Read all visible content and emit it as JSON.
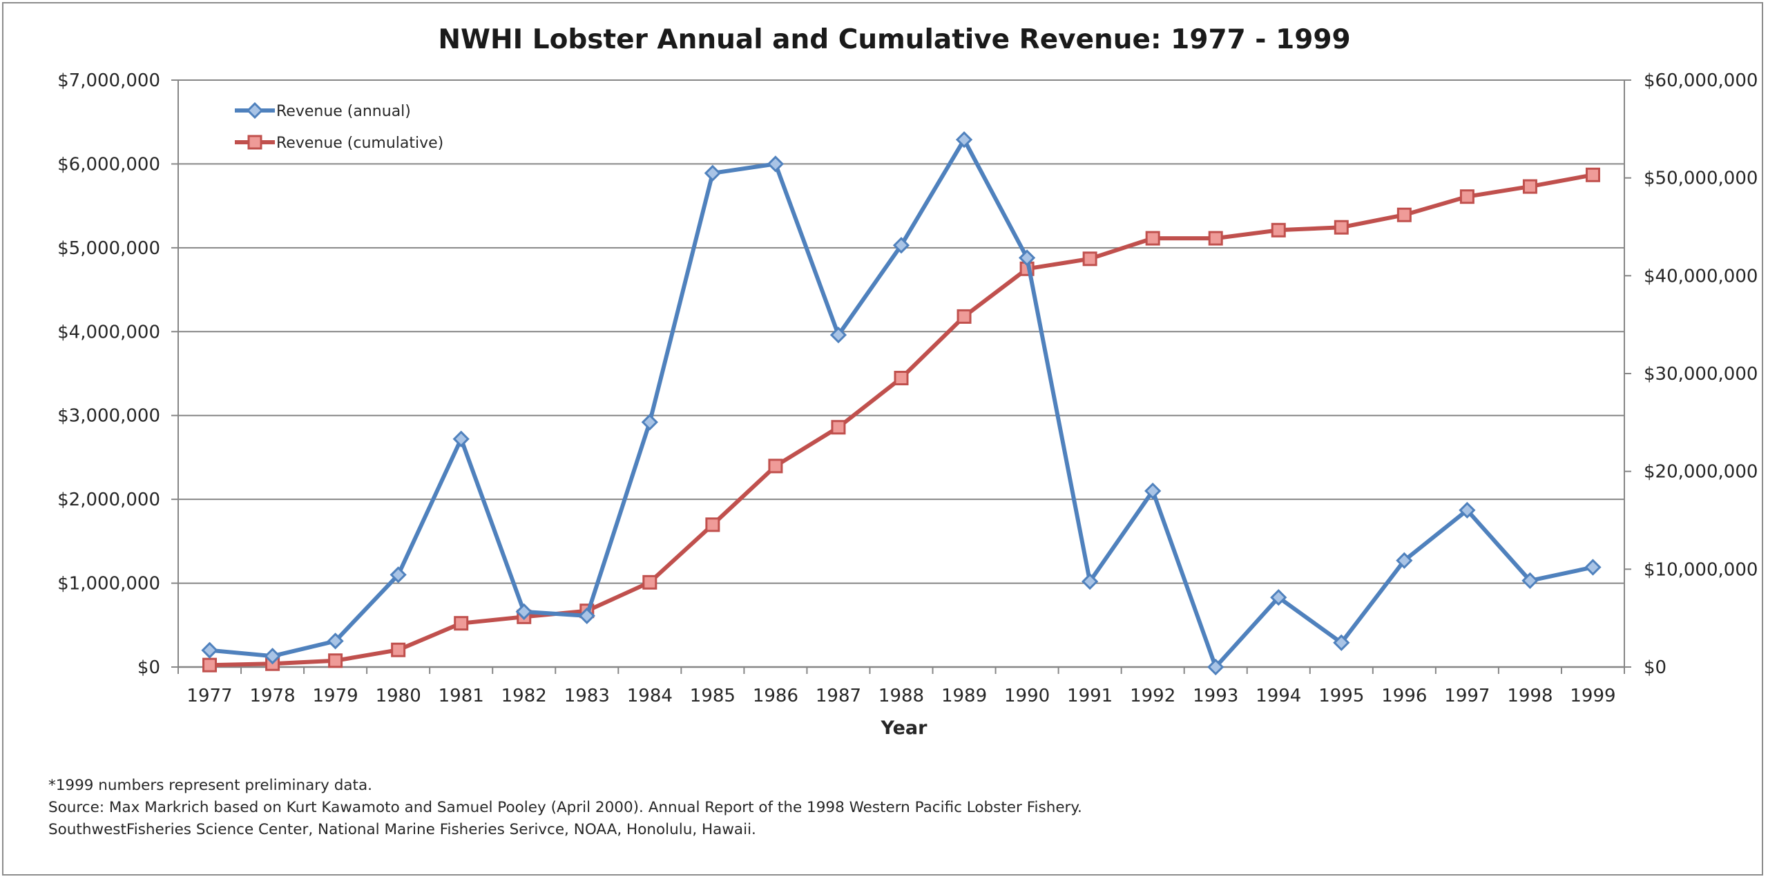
{
  "colors": {
    "annual": "#4f81bd",
    "cumulative": "#c0504d",
    "grid": "#868686",
    "axis": "#868686"
  },
  "chart_data": {
    "type": "line",
    "title": "NWHI Lobster Annual and Cumulative Revenue: 1977 - 1999",
    "xlabel": "Year",
    "ylabel": "",
    "ylabel_right": "",
    "categories": [
      "1977",
      "1978",
      "1979",
      "1980",
      "1981",
      "1982",
      "1983",
      "1984",
      "1985",
      "1986",
      "1987",
      "1988",
      "1989",
      "1990",
      "1991",
      "1992",
      "1993",
      "1994",
      "1995",
      "1996",
      "1997",
      "1998",
      "1999"
    ],
    "ylim": [
      0,
      7000000
    ],
    "ylim_right": [
      0,
      60000000
    ],
    "yticks_left": [
      "$0",
      "$1,000,000",
      "$2,000,000",
      "$3,000,000",
      "$4,000,000",
      "$5,000,000",
      "$6,000,000",
      "$7,000,000"
    ],
    "yticks_right": [
      "$0",
      "$10,000,000",
      "$20,000,000",
      "$30,000,000",
      "$40,000,000",
      "$50,000,000",
      "$60,000,000"
    ],
    "grid": true,
    "legend_position": "top-left",
    "series": [
      {
        "name": "Revenue (annual)",
        "axis": "left",
        "marker": "diamond",
        "values": [
          200000,
          130000,
          310000,
          1100000,
          2720000,
          660000,
          610000,
          2920000,
          5890000,
          6000000,
          3960000,
          5030000,
          6290000,
          4880000,
          1020000,
          2100000,
          0,
          830000,
          290000,
          1270000,
          1870000,
          1030000,
          1190000
        ]
      },
      {
        "name": "Revenue (cumulative)",
        "axis": "right",
        "marker": "square",
        "values": [
          200000,
          340000,
          650000,
          1750000,
          4470000,
          5130000,
          5740000,
          8660000,
          14550000,
          20550000,
          24510000,
          29540000,
          35830000,
          40710000,
          41730000,
          43830000,
          43830000,
          44660000,
          44950000,
          46220000,
          48090000,
          49120000,
          50310000
        ]
      }
    ]
  },
  "notes": {
    "line1": "*1999 numbers represent preliminary data.",
    "line2": "Source: Max Markrich based on Kurt Kawamoto and Samuel Pooley (April 2000). Annual Report of the 1998 Western Pacific Lobster Fishery.",
    "line3": "SouthwestFisheries Science Center, National Marine Fisheries Serivce, NOAA, Honolulu, Hawaii."
  }
}
